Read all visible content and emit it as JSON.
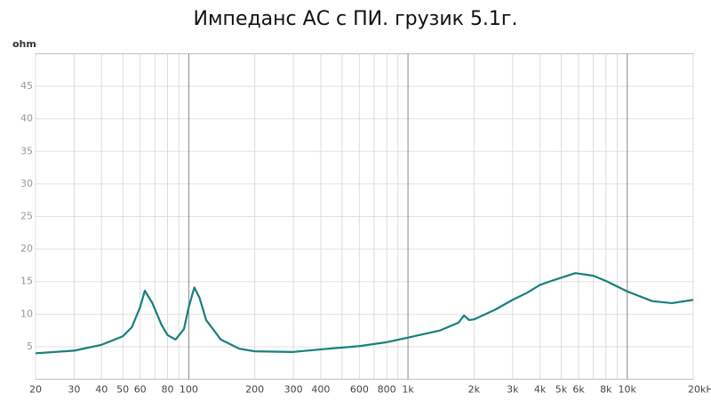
{
  "chart_data": {
    "type": "line",
    "title": "Импеданс АС с ПИ. грузик 5.1г.",
    "y_label": "ohm",
    "x_log": true,
    "grid": true,
    "xlim": [
      20,
      20000
    ],
    "ylim": [
      0,
      50
    ],
    "xticks": [
      20,
      30,
      40,
      50,
      60,
      80,
      100,
      200,
      300,
      400,
      600,
      800,
      {
        "value": 1000,
        "label": "1k"
      },
      {
        "value": 2000,
        "label": "2k"
      },
      {
        "value": 3000,
        "label": "3k"
      },
      {
        "value": 4000,
        "label": "4k"
      },
      {
        "value": 5000,
        "label": "5k"
      },
      {
        "value": 6000,
        "label": "6k"
      },
      {
        "value": 8000,
        "label": "8k"
      },
      {
        "value": 10000,
        "label": "10k"
      },
      {
        "value": 20000,
        "label": "20kHz"
      }
    ],
    "x_minor_grid": [
      70,
      90,
      500,
      700,
      900,
      7000,
      9000
    ],
    "yticks": [
      5,
      10,
      15,
      20,
      25,
      30,
      35,
      40,
      45
    ],
    "series": [
      {
        "color": "#16807c",
        "x": [
          20,
          30,
          40,
          50,
          55,
          60,
          63,
          68,
          75,
          80,
          87,
          95,
          100,
          106,
          112,
          120,
          140,
          170,
          200,
          300,
          400,
          600,
          800,
          1000,
          1400,
          1700,
          1800,
          1900,
          2000,
          2500,
          3000,
          3500,
          4000,
          4500,
          5000,
          5800,
          7000,
          8000,
          10000,
          13000,
          16000,
          20000
        ],
        "values": [
          4.0,
          4.4,
          5.3,
          6.6,
          8.0,
          11.1,
          13.6,
          11.8,
          8.4,
          6.8,
          6.1,
          7.7,
          11.1,
          14.1,
          12.5,
          9.1,
          6.1,
          4.7,
          4.3,
          4.2,
          4.6,
          5.1,
          5.7,
          6.4,
          7.5,
          8.7,
          9.8,
          9.1,
          9.2,
          10.7,
          12.2,
          13.3,
          14.5,
          15.1,
          15.6,
          16.3,
          15.9,
          15.1,
          13.5,
          12.0,
          11.7,
          12.2
        ]
      }
    ]
  }
}
